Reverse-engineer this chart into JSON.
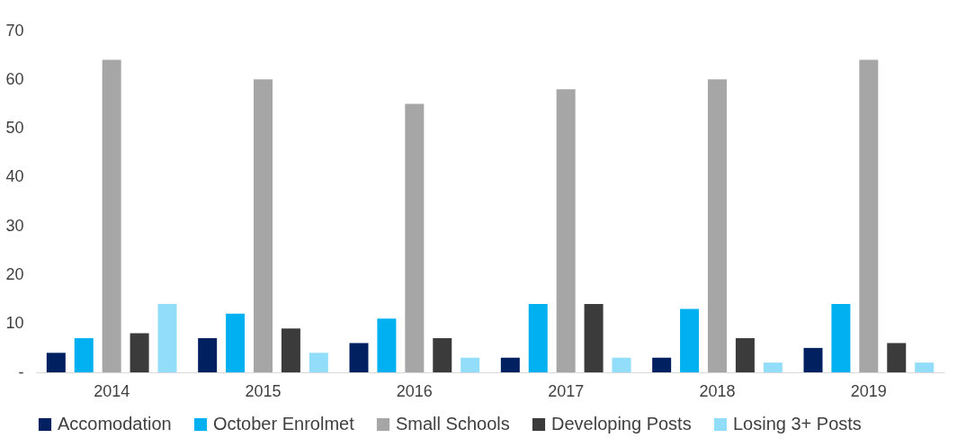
{
  "chart_data": {
    "type": "bar",
    "categories": [
      "2014",
      "2015",
      "2016",
      "2017",
      "2018",
      "2019"
    ],
    "series": [
      {
        "name": "Accomodation",
        "color": "#002060",
        "values": [
          4,
          7,
          6,
          3,
          3,
          5
        ]
      },
      {
        "name": "October Enrolmet",
        "color": "#00b0f0",
        "values": [
          7,
          12,
          11,
          14,
          13,
          14
        ]
      },
      {
        "name": "Small Schools",
        "color": "#a6a6a6",
        "values": [
          64,
          60,
          55,
          58,
          60,
          64
        ]
      },
      {
        "name": "Developing Posts",
        "color": "#3b3b3b",
        "values": [
          8,
          9,
          7,
          14,
          7,
          6
        ]
      },
      {
        "name": "Losing 3+ Posts",
        "color": "#92defa",
        "values": [
          14,
          4,
          3,
          3,
          2,
          2
        ]
      }
    ],
    "ylim": [
      0,
      70
    ],
    "yticks": [
      {
        "value": 0,
        "label": "-"
      },
      10,
      20,
      30,
      40,
      50,
      60,
      70
    ],
    "grid": false,
    "legend": "bottom"
  }
}
